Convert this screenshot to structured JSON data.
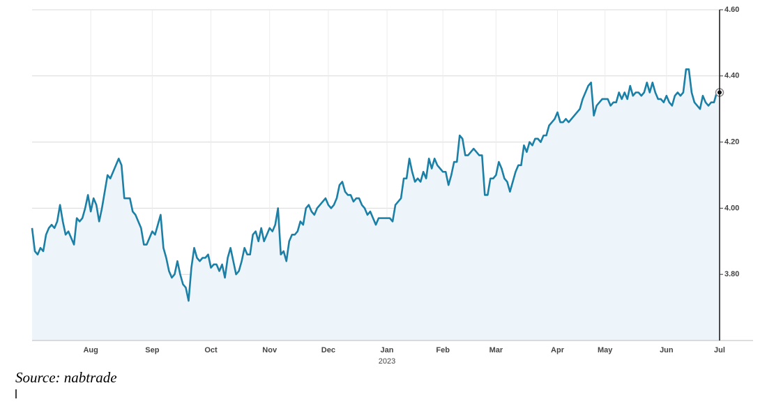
{
  "chart_data": {
    "type": "area",
    "source": "Source: nabtrade",
    "year_label": "2023",
    "color": "#1b7fa6",
    "fill": "#eef5fa",
    "grid": true,
    "ylim": [
      3.6,
      4.6
    ],
    "yticks": [
      {
        "value": 3.8,
        "label": "3.80"
      },
      {
        "value": 4.0,
        "label": "4.00"
      },
      {
        "value": 4.2,
        "label": "4.20"
      },
      {
        "value": 4.4,
        "label": "4.40"
      },
      {
        "value": 4.6,
        "label": "4.60"
      }
    ],
    "categories": [
      null,
      null,
      null,
      null,
      null,
      null,
      null,
      null,
      null,
      null,
      null,
      null,
      null,
      null,
      null,
      null,
      null,
      null,
      null,
      null,
      null,
      "Aug",
      null,
      null,
      null,
      null,
      null,
      null,
      null,
      null,
      null,
      null,
      null,
      null,
      null,
      null,
      null,
      null,
      null,
      null,
      null,
      null,
      null,
      "Sep",
      null,
      null,
      null,
      null,
      null,
      null,
      null,
      null,
      null,
      null,
      null,
      null,
      null,
      null,
      null,
      null,
      null,
      null,
      null,
      null,
      "Oct",
      null,
      null,
      null,
      null,
      null,
      null,
      null,
      null,
      null,
      null,
      null,
      null,
      null,
      null,
      null,
      null,
      null,
      null,
      null,
      null,
      "Nov",
      null,
      null,
      null,
      null,
      null,
      null,
      null,
      null,
      null,
      null,
      null,
      null,
      null,
      null,
      null,
      null,
      null,
      null,
      null,
      null,
      "Dec",
      null,
      null,
      null,
      null,
      null,
      null,
      null,
      null,
      null,
      null,
      null,
      null,
      null,
      null,
      null,
      null,
      null,
      null,
      null,
      null,
      "Jan",
      null,
      null,
      null,
      null,
      null,
      null,
      null,
      null,
      null,
      null,
      null,
      null,
      null,
      null,
      null,
      null,
      null,
      null,
      null,
      "Feb",
      null,
      null,
      null,
      null,
      null,
      null,
      null,
      null,
      null,
      null,
      null,
      null,
      null,
      null,
      null,
      null,
      null,
      null,
      "Mar",
      null,
      null,
      null,
      null,
      null,
      null,
      null,
      null,
      null,
      null,
      null,
      null,
      null,
      null,
      null,
      null,
      null,
      null,
      null,
      null,
      null,
      "Apr",
      null,
      null,
      null,
      null,
      null,
      null,
      null,
      null,
      null,
      null,
      null,
      null,
      null,
      null,
      null,
      null,
      "May",
      null,
      null,
      null,
      null,
      null,
      null,
      null,
      null,
      null,
      null,
      null,
      null,
      null,
      null,
      null,
      null,
      null,
      null,
      null,
      null,
      null,
      "Jun",
      null,
      null,
      null,
      null,
      null,
      null,
      null,
      null,
      null,
      null,
      null,
      null,
      null,
      null,
      null,
      null,
      null,
      null,
      "Jul"
    ],
    "values": [
      3.94,
      3.87,
      3.86,
      3.88,
      3.87,
      3.92,
      3.94,
      3.95,
      3.94,
      3.96,
      4.01,
      3.96,
      3.92,
      3.93,
      3.91,
      3.89,
      3.97,
      3.96,
      3.97,
      4.0,
      4.04,
      3.99,
      4.03,
      4.01,
      3.96,
      4.0,
      4.05,
      4.1,
      4.09,
      4.11,
      4.13,
      4.15,
      4.13,
      4.03,
      4.03,
      4.03,
      3.99,
      3.98,
      3.96,
      3.94,
      3.89,
      3.89,
      3.91,
      3.93,
      3.92,
      3.95,
      3.98,
      3.88,
      3.85,
      3.81,
      3.79,
      3.8,
      3.84,
      3.8,
      3.77,
      3.76,
      3.72,
      3.82,
      3.88,
      3.85,
      3.84,
      3.85,
      3.85,
      3.86,
      3.82,
      3.83,
      3.83,
      3.81,
      3.83,
      3.79,
      3.85,
      3.88,
      3.84,
      3.8,
      3.81,
      3.84,
      3.88,
      3.86,
      3.86,
      3.92,
      3.93,
      3.9,
      3.94,
      3.9,
      3.92,
      3.94,
      3.93,
      3.95,
      4.0,
      3.86,
      3.87,
      3.84,
      3.9,
      3.92,
      3.92,
      3.93,
      3.96,
      3.95,
      4.0,
      4.01,
      3.99,
      3.98,
      4.0,
      4.01,
      4.02,
      4.03,
      4.01,
      4.0,
      4.01,
      4.03,
      4.07,
      4.08,
      4.05,
      4.04,
      4.04,
      4.02,
      4.03,
      4.03,
      4.01,
      4.0,
      3.98,
      3.99,
      3.97,
      3.95,
      3.97,
      3.97,
      3.97,
      3.97,
      3.97,
      3.96,
      4.01,
      4.02,
      4.03,
      4.09,
      4.09,
      4.15,
      4.11,
      4.08,
      4.09,
      4.08,
      4.11,
      4.09,
      4.15,
      4.12,
      4.15,
      4.13,
      4.12,
      4.11,
      4.11,
      4.07,
      4.1,
      4.14,
      4.14,
      4.22,
      4.21,
      4.16,
      4.16,
      4.17,
      4.18,
      4.17,
      4.16,
      4.16,
      4.04,
      4.04,
      4.09,
      4.09,
      4.1,
      4.14,
      4.12,
      4.09,
      4.08,
      4.05,
      4.08,
      4.11,
      4.13,
      4.13,
      4.19,
      4.17,
      4.2,
      4.19,
      4.21,
      4.21,
      4.2,
      4.22,
      4.22,
      4.25,
      4.26,
      4.27,
      4.29,
      4.26,
      4.26,
      4.27,
      4.26,
      4.27,
      4.28,
      4.29,
      4.3,
      4.33,
      4.35,
      4.37,
      4.38,
      4.28,
      4.31,
      4.32,
      4.33,
      4.33,
      4.33,
      4.31,
      4.32,
      4.32,
      4.35,
      4.33,
      4.35,
      4.33,
      4.37,
      4.34,
      4.35,
      4.35,
      4.34,
      4.35,
      4.38,
      4.35,
      4.38,
      4.35,
      4.33,
      4.33,
      4.32,
      4.34,
      4.32,
      4.31,
      4.34,
      4.35,
      4.34,
      4.35,
      4.42,
      4.42,
      4.35,
      4.32,
      4.31,
      4.3,
      4.34,
      4.32,
      4.31,
      4.32,
      4.32,
      4.35,
      4.35
    ]
  }
}
